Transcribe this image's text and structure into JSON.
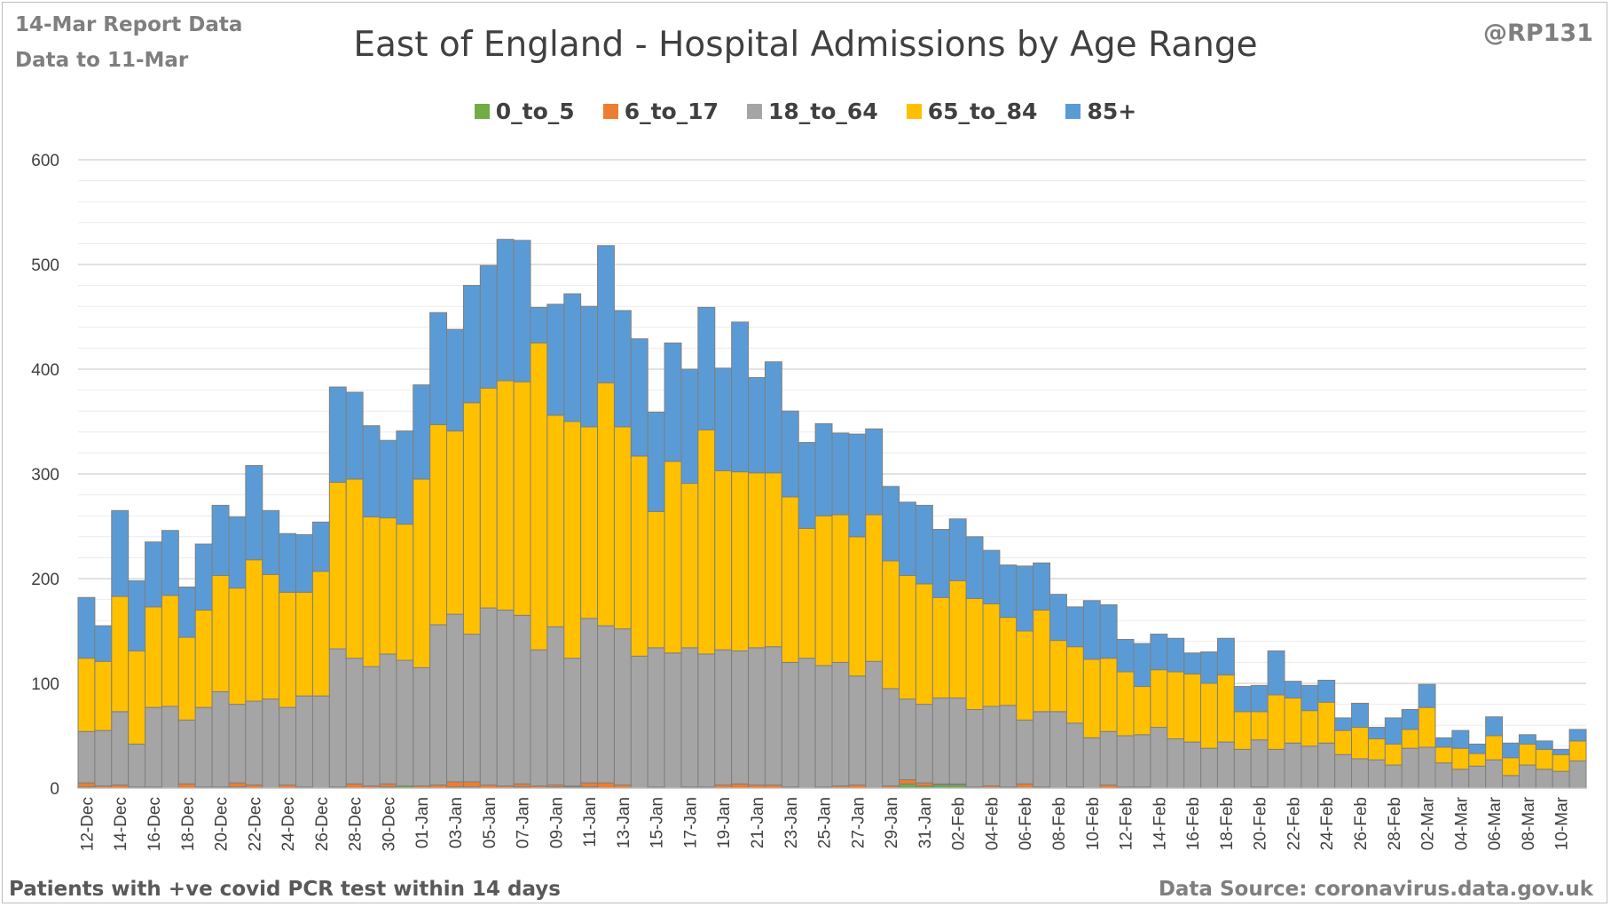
{
  "header": {
    "report": "14-Mar Report Data",
    "data_to": "Data to 11-Mar",
    "author": "@RP131"
  },
  "footer": {
    "note": "Patients with  +ve covid PCR test within 14 days",
    "source": "Data Source: coronavirus.data.gov.uk"
  },
  "chart_data": {
    "type": "bar",
    "stacked": true,
    "title": "East of England - Hospital Admissions by Age Range",
    "legend_position": "top",
    "ylim": [
      0,
      600
    ],
    "yticks": [
      0,
      100,
      200,
      300,
      400,
      500,
      600
    ],
    "grid": true,
    "categories": [
      "12-Dec",
      "13-Dec",
      "14-Dec",
      "15-Dec",
      "16-Dec",
      "17-Dec",
      "18-Dec",
      "19-Dec",
      "20-Dec",
      "21-Dec",
      "22-Dec",
      "23-Dec",
      "24-Dec",
      "25-Dec",
      "26-Dec",
      "27-Dec",
      "28-Dec",
      "29-Dec",
      "30-Dec",
      "31-Dec",
      "01-Jan",
      "02-Jan",
      "03-Jan",
      "04-Jan",
      "05-Jan",
      "06-Jan",
      "07-Jan",
      "08-Jan",
      "09-Jan",
      "10-Jan",
      "11-Jan",
      "12-Jan",
      "13-Jan",
      "14-Jan",
      "15-Jan",
      "16-Jan",
      "17-Jan",
      "18-Jan",
      "19-Jan",
      "20-Jan",
      "21-Jan",
      "22-Jan",
      "23-Jan",
      "24-Jan",
      "25-Jan",
      "26-Jan",
      "27-Jan",
      "28-Jan",
      "29-Jan",
      "30-Jan",
      "31-Jan",
      "01-Feb",
      "02-Feb",
      "03-Feb",
      "04-Feb",
      "05-Feb",
      "06-Feb",
      "07-Feb",
      "08-Feb",
      "09-Feb",
      "10-Feb",
      "11-Feb",
      "12-Feb",
      "13-Feb",
      "14-Feb",
      "15-Feb",
      "16-Feb",
      "17-Feb",
      "18-Feb",
      "19-Feb",
      "20-Feb",
      "21-Feb",
      "22-Feb",
      "23-Feb",
      "24-Feb",
      "25-Feb",
      "26-Feb",
      "27-Feb",
      "28-Feb",
      "01-Mar",
      "02-Mar",
      "03-Mar",
      "04-Mar",
      "05-Mar",
      "06-Mar",
      "07-Mar",
      "08-Mar",
      "09-Mar",
      "10-Mar",
      "11-Mar"
    ],
    "tick_labels": [
      "12-Dec",
      "14-Dec",
      "16-Dec",
      "18-Dec",
      "20-Dec",
      "22-Dec",
      "24-Dec",
      "26-Dec",
      "28-Dec",
      "30-Dec",
      "01-Jan",
      "03-Jan",
      "05-Jan",
      "07-Jan",
      "09-Jan",
      "11-Jan",
      "13-Jan",
      "15-Jan",
      "17-Jan",
      "19-Jan",
      "21-Jan",
      "23-Jan",
      "25-Jan",
      "27-Jan",
      "29-Jan",
      "31-Jan",
      "02-Feb",
      "04-Feb",
      "06-Feb",
      "08-Feb",
      "10-Feb",
      "12-Feb",
      "14-Feb",
      "16-Feb",
      "18-Feb",
      "20-Feb",
      "22-Feb",
      "24-Feb",
      "26-Feb",
      "28-Feb",
      "02-Mar",
      "04-Mar",
      "06-Mar",
      "08-Mar",
      "10-Mar"
    ],
    "series": [
      {
        "name": "0_to_5",
        "color": "#70ad47",
        "values": [
          1,
          0,
          0,
          0,
          0,
          0,
          0,
          0,
          0,
          1,
          0,
          0,
          0,
          0,
          0,
          0,
          0,
          0,
          1,
          2,
          0,
          0,
          1,
          1,
          0,
          0,
          1,
          0,
          1,
          1,
          1,
          0,
          0,
          0,
          0,
          0,
          0,
          0,
          0,
          0,
          0,
          0,
          0,
          0,
          0,
          0,
          0,
          0,
          0,
          4,
          2,
          3,
          3,
          0,
          0,
          0,
          0,
          0,
          0,
          0,
          0,
          0,
          0,
          0,
          0,
          0,
          0,
          0,
          0,
          0,
          1,
          0,
          0,
          0,
          0,
          0,
          0,
          0,
          0,
          0,
          0,
          0,
          0,
          0,
          0,
          0,
          0,
          0,
          0,
          0
        ]
      },
      {
        "name": "6_to_17",
        "color": "#ed7d31",
        "values": [
          4,
          2,
          3,
          1,
          1,
          0,
          4,
          1,
          1,
          4,
          3,
          0,
          3,
          1,
          0,
          1,
          4,
          2,
          3,
          0,
          2,
          3,
          5,
          5,
          3,
          2,
          3,
          2,
          2,
          1,
          4,
          5,
          3,
          0,
          1,
          0,
          1,
          1,
          3,
          4,
          3,
          3,
          1,
          0,
          1,
          2,
          3,
          0,
          2,
          4,
          3,
          1,
          1,
          1,
          2,
          1,
          4,
          1,
          0,
          1,
          0,
          3,
          1,
          1,
          0,
          0,
          0,
          0,
          0,
          0,
          0,
          0,
          0,
          0,
          0,
          0,
          0,
          0,
          0,
          0,
          0,
          0,
          0,
          0,
          0,
          0,
          0,
          0,
          0,
          0
        ]
      },
      {
        "name": "18_to_64",
        "color": "#a5a5a5",
        "values": [
          49,
          53,
          70,
          41,
          76,
          78,
          61,
          76,
          91,
          75,
          80,
          85,
          74,
          87,
          88,
          132,
          120,
          114,
          124,
          120,
          113,
          153,
          160,
          141,
          169,
          168,
          161,
          130,
          151,
          122,
          157,
          150,
          149,
          126,
          133,
          129,
          133,
          127,
          129,
          127,
          131,
          132,
          119,
          124,
          116,
          118,
          104,
          121,
          93,
          77,
          75,
          82,
          82,
          74,
          76,
          78,
          61,
          72,
          73,
          61,
          48,
          51,
          49,
          50,
          58,
          47,
          44,
          38,
          44,
          37,
          45,
          37,
          43,
          40,
          43,
          32,
          28,
          27,
          22,
          38,
          39,
          24,
          18,
          21,
          27,
          12,
          22,
          18,
          16,
          26
        ]
      },
      {
        "name": "65_to_84",
        "color": "#ffc000",
        "values": [
          70,
          66,
          110,
          89,
          96,
          106,
          79,
          93,
          111,
          111,
          135,
          119,
          110,
          99,
          119,
          159,
          171,
          143,
          130,
          130,
          180,
          191,
          175,
          221,
          210,
          219,
          223,
          293,
          202,
          226,
          183,
          232,
          193,
          191,
          130,
          183,
          157,
          214,
          171,
          171,
          167,
          166,
          158,
          124,
          143,
          141,
          133,
          140,
          122,
          118,
          115,
          96,
          112,
          106,
          98,
          84,
          85,
          97,
          68,
          73,
          75,
          70,
          61,
          46,
          55,
          64,
          65,
          62,
          64,
          36,
          27,
          52,
          43,
          34,
          39,
          23,
          30,
          20,
          20,
          18,
          38,
          15,
          20,
          12,
          23,
          17,
          20,
          19,
          16,
          19
        ]
      },
      {
        "name": "85+",
        "color": "#5b9bd5",
        "values": [
          58,
          34,
          82,
          67,
          62,
          62,
          48,
          63,
          67,
          68,
          90,
          61,
          56,
          55,
          47,
          91,
          83,
          87,
          74,
          89,
          90,
          107,
          97,
          112,
          117,
          135,
          135,
          34,
          106,
          122,
          115,
          131,
          111,
          112,
          95,
          113,
          109,
          117,
          98,
          143,
          91,
          106,
          82,
          82,
          88,
          78,
          98,
          82,
          71,
          70,
          75,
          65,
          59,
          59,
          51,
          50,
          62,
          45,
          44,
          38,
          56,
          51,
          31,
          41,
          34,
          32,
          20,
          30,
          35,
          24,
          25,
          42,
          16,
          24,
          21,
          12,
          23,
          11,
          25,
          19,
          22,
          9,
          17,
          9,
          18,
          14,
          9,
          8,
          5,
          11
        ]
      }
    ]
  }
}
